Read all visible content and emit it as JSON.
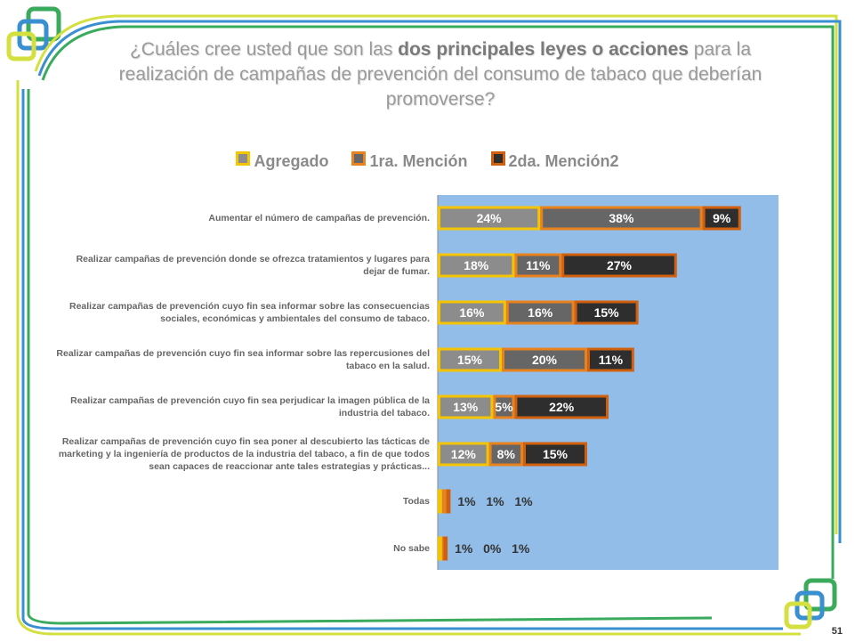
{
  "title": {
    "pre": "¿Cuáles cree usted que son las ",
    "bold": "dos principales leyes o acciones",
    "post": " para la realización de campañas de prevención del consumo de tabaco que deberían promoverse?"
  },
  "page_number": "51",
  "chart_data": {
    "type": "bar",
    "orientation": "horizontal",
    "stacked": true,
    "categories": [
      "Aumentar el número de campañas de prevención.",
      "Realizar campañas de prevención donde se ofrezca tratamientos y lugares para dejar de fumar.",
      "Realizar campañas de prevención cuyo fin sea informar sobre las consecuencias sociales, económicas y ambientales del consumo de tabaco.",
      "Realizar campañas de prevención cuyo fin sea informar sobre las repercusiones del tabaco en la salud.",
      "Realizar campañas de prevención cuyo fin  sea  perjudicar la imagen pública de la industria del tabaco.",
      "Realizar campañas de prevención cuyo fin  sea poner al descubierto las tácticas de marketing y la ingeniería de productos de la industria del tabaco, a fin de que todos  sean capaces de reaccionar ante tales estrategias y prácticas...",
      "Todas",
      "No sabe"
    ],
    "series": [
      {
        "name": "Agregado",
        "values": [
          24,
          18,
          16,
          15,
          13,
          12,
          1,
          1
        ],
        "fill": "#8c8c8c",
        "border": "#f5c400"
      },
      {
        "name": "1ra. Mención",
        "values": [
          38,
          11,
          16,
          20,
          5,
          8,
          1,
          0
        ],
        "fill": "#666666",
        "border": "#e8821e"
      },
      {
        "name": "2da. Mención2",
        "values": [
          9,
          27,
          15,
          11,
          22,
          15,
          1,
          1
        ],
        "fill": "#2e2e2e",
        "border": "#d0600e"
      }
    ],
    "legend": "top",
    "value_format": "percent",
    "plot_background": "#93bde9"
  }
}
